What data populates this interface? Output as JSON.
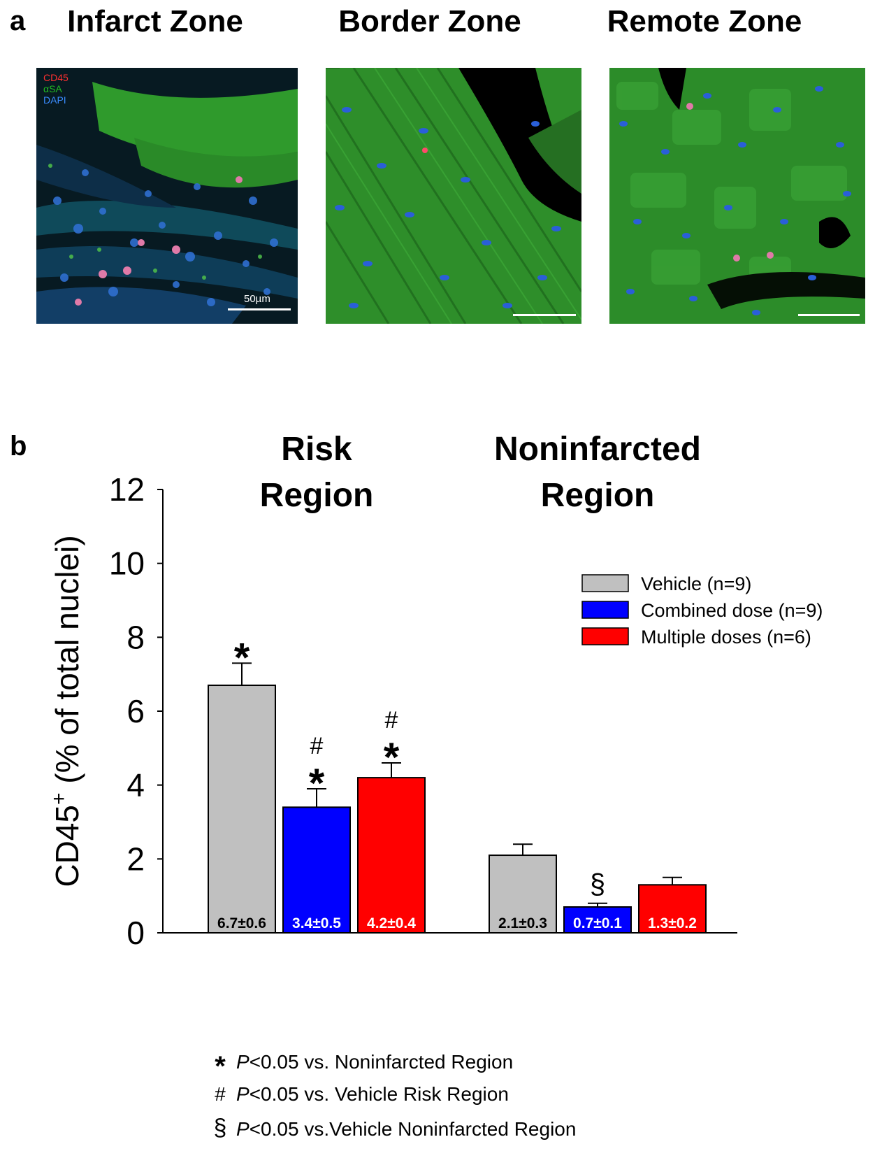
{
  "panel_a": {
    "letter": "a",
    "zones": [
      {
        "title": "Infarct Zone",
        "scale_label": "50µm"
      },
      {
        "title": "Border Zone"
      },
      {
        "title": "Remote Zone"
      }
    ],
    "stains": [
      {
        "label": "CD45",
        "color": "#ff3030"
      },
      {
        "label": "αSA",
        "color": "#22bb22"
      },
      {
        "label": "DAPI",
        "color": "#3a8cff"
      }
    ]
  },
  "panel_b": {
    "letter": "b"
  },
  "chart_data": {
    "type": "bar",
    "ylabel": "CD45⁺ (% of total nuclei)",
    "ylabel_main": "CD45",
    "ylabel_sup": "+",
    "ylabel_rest": " (% of total nuclei)",
    "ylim": [
      0,
      12
    ],
    "yticks": [
      0,
      2,
      4,
      6,
      8,
      10,
      12
    ],
    "groups": [
      {
        "title_lines": [
          "Risk",
          "Region"
        ]
      },
      {
        "title_lines": [
          "Noninfarcted",
          "Region"
        ]
      }
    ],
    "series": [
      {
        "name": "Vehicle (n=9)",
        "color": "#c0c0c0",
        "label_color": "#000000",
        "values": [
          6.7,
          2.1
        ],
        "errors": [
          0.6,
          0.3
        ],
        "labels": [
          "6.7±0.6",
          "2.1±0.3"
        ]
      },
      {
        "name": "Combined dose (n=9)",
        "color": "#0000ff",
        "label_color": "#ffffff",
        "values": [
          3.4,
          0.7
        ],
        "errors": [
          0.5,
          0.1
        ],
        "labels": [
          "3.4±0.5",
          "0.7±0.1"
        ]
      },
      {
        "name": "Multiple doses (n=6)",
        "color": "#ff0000",
        "label_color": "#ffffff",
        "values": [
          4.2,
          1.3
        ],
        "errors": [
          0.4,
          0.2
        ],
        "labels": [
          "4.2±0.4",
          "1.3±0.2"
        ]
      }
    ],
    "significance": [
      {
        "group": 0,
        "series": 0,
        "marks": [
          "*"
        ]
      },
      {
        "group": 0,
        "series": 1,
        "marks": [
          "#",
          "*"
        ]
      },
      {
        "group": 0,
        "series": 2,
        "marks": [
          "#",
          "*"
        ]
      },
      {
        "group": 1,
        "series": 1,
        "marks": [
          "§"
        ]
      }
    ],
    "legend_position": "right"
  },
  "footnotes": [
    {
      "symbol": "*",
      "p": "P",
      "text": "<0.05 vs. Noninfarcted Region"
    },
    {
      "symbol": "#",
      "p": "P",
      "text": "<0.05 vs. Vehicle Risk Region"
    },
    {
      "symbol": "§",
      "p": "P",
      "text": "<0.05 vs.Vehicle Noninfarcted Region"
    }
  ]
}
